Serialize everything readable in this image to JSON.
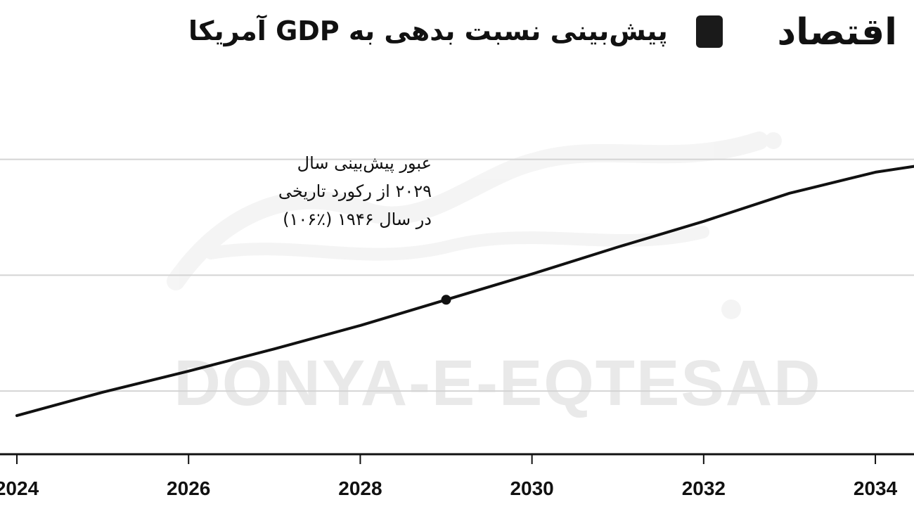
{
  "header": {
    "title": "پیش‌بینی نسبت بدهی به GDP آمریکا",
    "logo_text": "اقتصاد"
  },
  "watermark": {
    "latin": "DONYA-E-EQTESAD"
  },
  "annotation": {
    "lines": [
      "عبور پیش‌بینی سال",
      "۲۰۲۹ از رکورد تاریخی",
      "در سال ۱۹۴۶ (٪۱۰۶)"
    ],
    "point_year": 2029
  },
  "chart_data": {
    "type": "line",
    "title": "پیش‌بینی نسبت بدهی به GDP آمریکا",
    "xlabel": "",
    "ylabel": "",
    "x_ticks": [
      "2024",
      "2026",
      "2028",
      "2030",
      "2032",
      "2034"
    ],
    "xlim": [
      2024,
      2034.45
    ],
    "ylim": [
      94.6,
      124.4
    ],
    "grid": true,
    "gridlines_y": [
      100,
      109.9,
      119.8
    ],
    "series": [
      {
        "x": [
          2024,
          2025,
          2026,
          2027,
          2028,
          2029,
          2030,
          2031,
          2032,
          2033,
          2034,
          2034.45
        ],
        "y": [
          97.9,
          99.9,
          101.7,
          103.6,
          105.6,
          107.8,
          110.0,
          112.3,
          114.5,
          116.9,
          118.7,
          119.2
        ]
      }
    ],
    "marker": {
      "x": 2029,
      "y": 107.8
    },
    "colors": {
      "line": "#111111",
      "grid": "#d4d4d4",
      "axis": "#111111"
    }
  }
}
